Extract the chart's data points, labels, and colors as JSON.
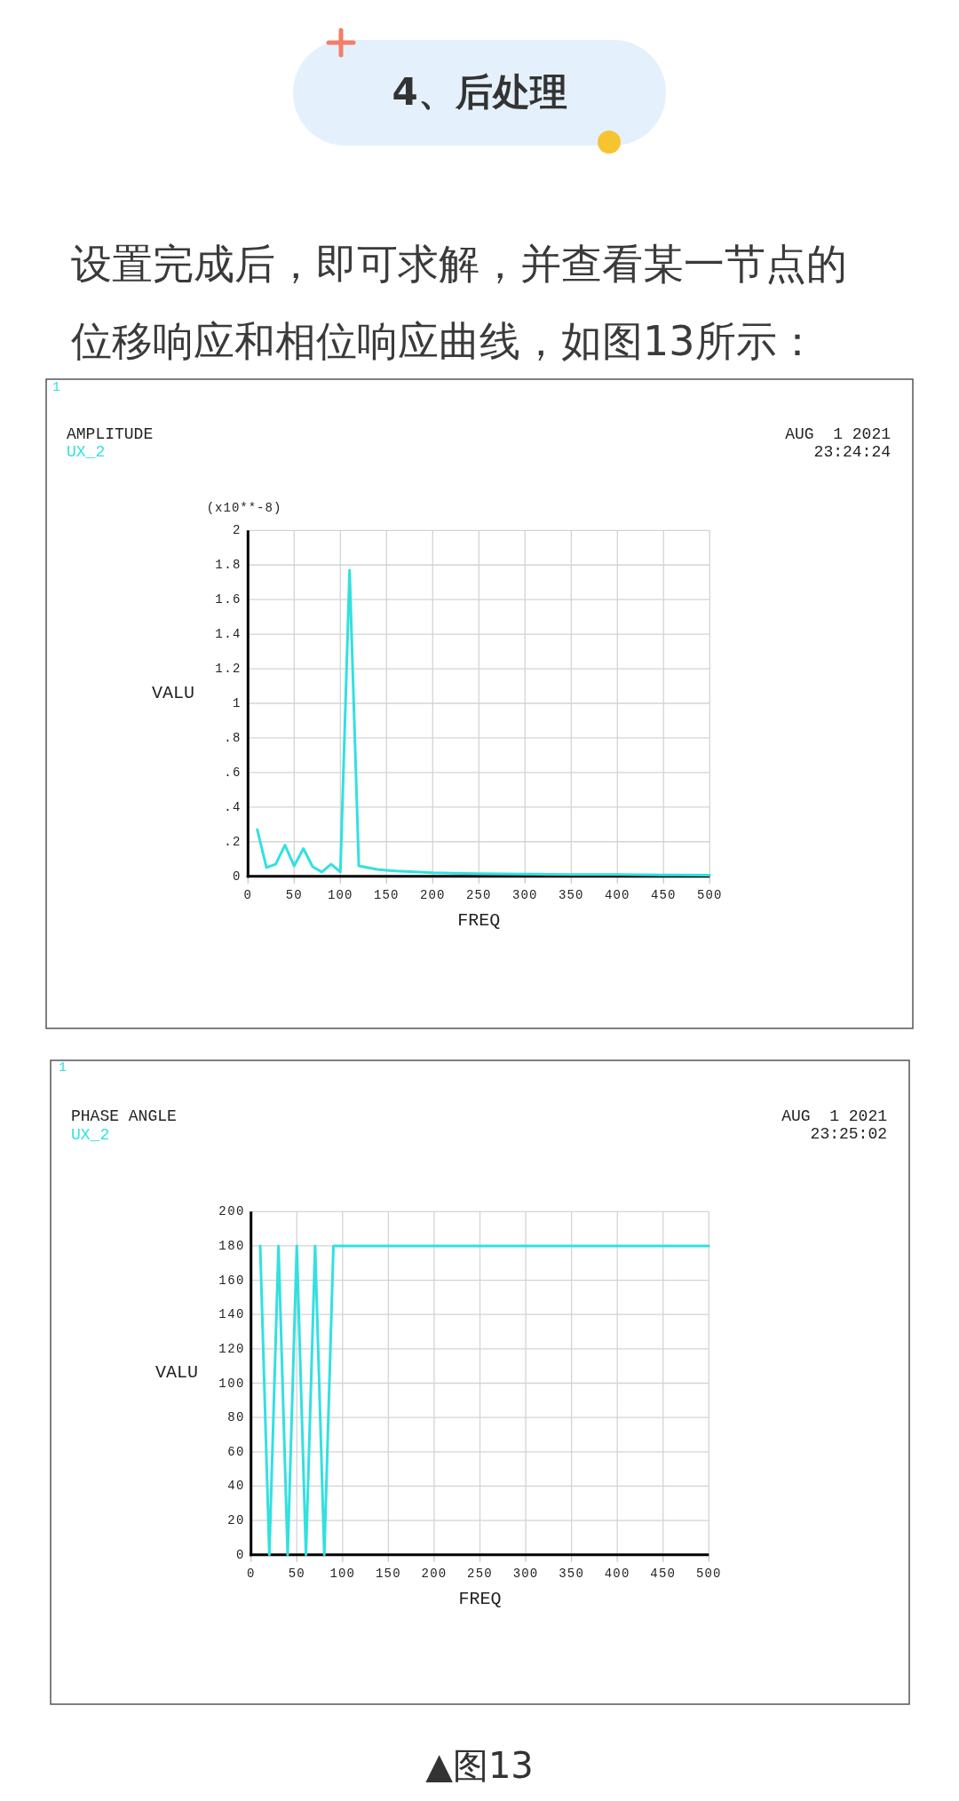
{
  "chart_data": [
    {
      "type": "line",
      "title": "AMPLITUDE",
      "xlabel": "FREQ",
      "ylabel": "VALU",
      "annotations": [
        "4、后处理",
        "设置完成后，即可求解，并查看某一节点的位移响应和相位响应曲线，如图13所示：",
        "1",
        "AUG  1 2021",
        "23:24:24",
        "(x10**-8)"
      ],
      "series": [
        {
          "name": "UX_2",
          "color": "#33e0e0",
          "x": [
            10,
            20,
            30,
            40,
            50,
            60,
            70,
            80,
            90,
            100,
            110,
            120,
            130,
            140,
            150,
            160,
            180,
            200,
            250,
            300,
            350,
            400,
            450,
            500
          ],
          "values": [
            0.27,
            0.05,
            0.07,
            0.18,
            0.06,
            0.16,
            0.055,
            0.025,
            0.07,
            0.025,
            1.77,
            0.06,
            0.05,
            0.04,
            0.035,
            0.03,
            0.025,
            0.02,
            0.015,
            0.012,
            0.01,
            0.01,
            0.008,
            0.006
          ]
        }
      ],
      "xlim": [
        0,
        500
      ],
      "ylim": [
        0,
        2
      ],
      "xticks": [
        0,
        50,
        100,
        150,
        200,
        250,
        300,
        350,
        400,
        450,
        500
      ],
      "yticks": [
        0,
        {
          "value": 0.2,
          "label": ".2"
        },
        {
          "value": 0.4,
          "label": ".4"
        },
        {
          "value": 0.6,
          "label": ".6"
        },
        {
          "value": 0.8,
          "label": ".8"
        },
        1,
        1.2,
        1.4,
        1.6,
        1.8,
        2
      ],
      "grid": true,
      "legend": "top left"
    },
    {
      "type": "line",
      "title": "PHASE ANGLE",
      "xlabel": "FREQ",
      "ylabel": "VALU",
      "annotations": [
        "1",
        "AUG  1 2021",
        "23:25:02",
        "▲图13"
      ],
      "series": [
        {
          "name": "UX_2",
          "color": "#33e0e0",
          "x": [
            10,
            20,
            30,
            40,
            50,
            60,
            70,
            80,
            90,
            100,
            200,
            300,
            400,
            500
          ],
          "values": [
            180,
            0,
            180,
            0,
            180,
            0,
            180,
            0,
            180,
            180,
            180,
            180,
            180,
            180
          ]
        }
      ],
      "xlim": [
        0,
        500
      ],
      "ylim": [
        0,
        200
      ],
      "xticks": [
        0,
        50,
        100,
        150,
        200,
        250,
        300,
        350,
        400,
        450,
        500
      ],
      "yticks": [
        0,
        20,
        40,
        60,
        80,
        100,
        120,
        140,
        160,
        180,
        200
      ],
      "grid": true,
      "legend": "top left"
    }
  ]
}
